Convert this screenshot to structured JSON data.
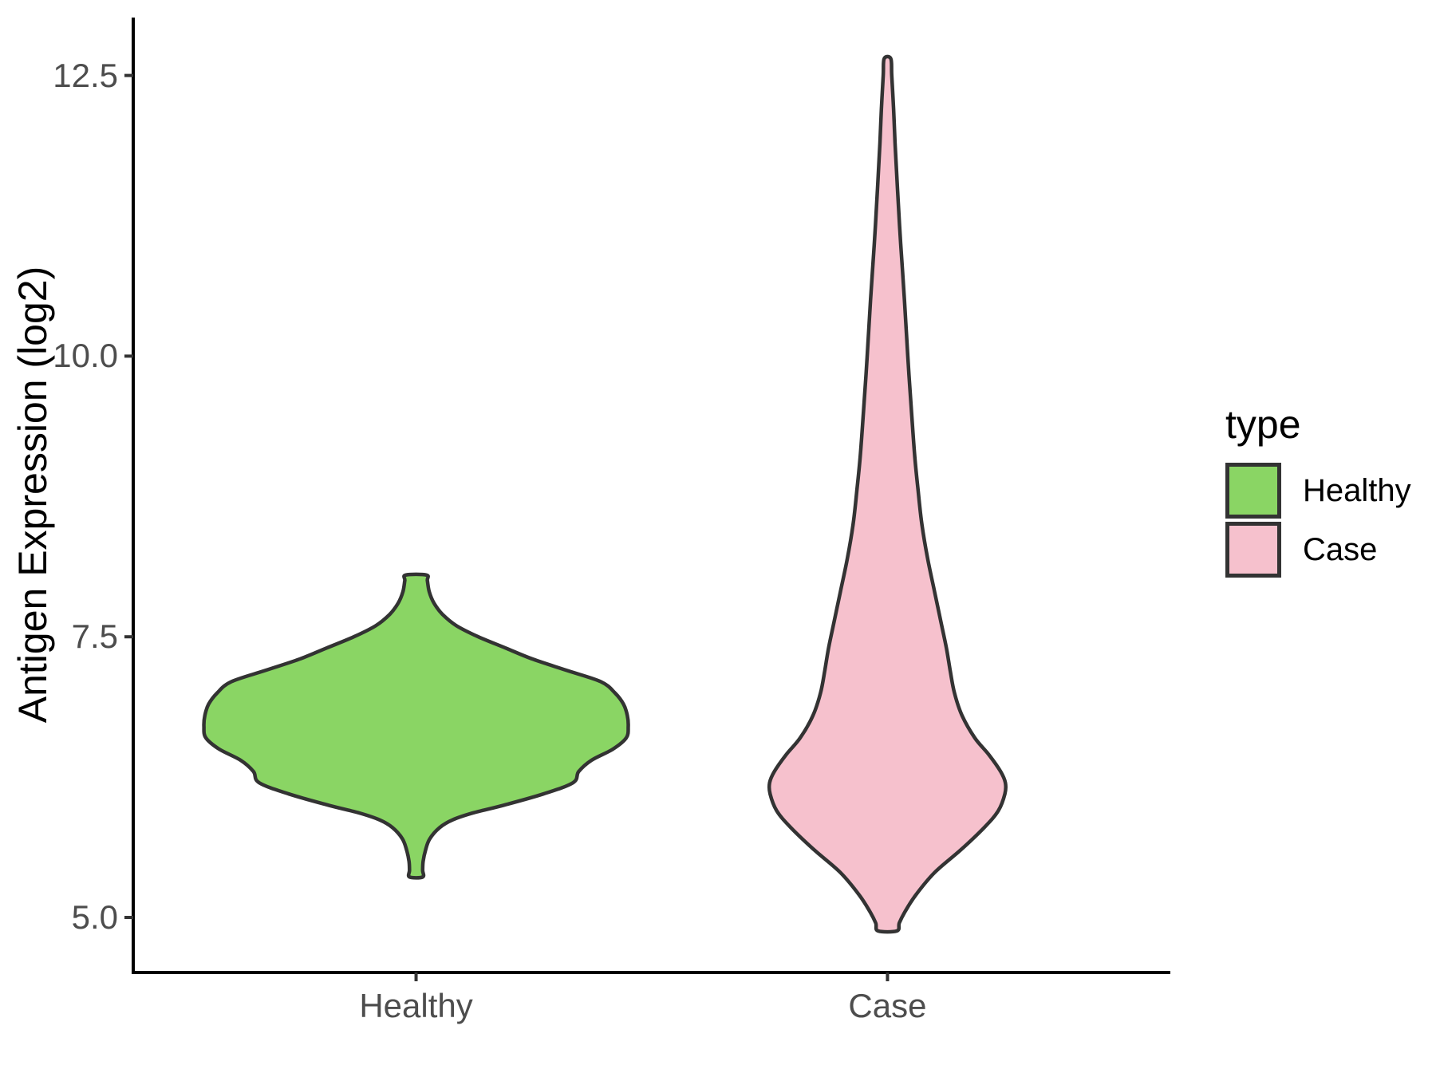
{
  "chart_data": {
    "type": "violin",
    "title": "",
    "xlabel": "",
    "ylabel": "Antigen Expression (log2)",
    "categories": [
      "Healthy",
      "Case"
    ],
    "x_tick_labels": [
      "Healthy",
      "Case"
    ],
    "y_ticks": [
      {
        "value": 5.0,
        "label": "5.0"
      },
      {
        "value": 7.5,
        "label": "7.5"
      },
      {
        "value": 10.0,
        "label": "10.0"
      },
      {
        "value": 12.5,
        "label": "12.5"
      }
    ],
    "ylim": [
      4.5,
      13.0
    ],
    "grid": "off",
    "axis_colors": {
      "line": "#000000",
      "tick": "#333333",
      "tick_text": "#4d4d4d",
      "title_text": "#000000"
    },
    "legend": {
      "title": "type",
      "position": "right",
      "swatch_border": "#333333",
      "entries": [
        {
          "label": "Healthy",
          "fill": "#8AD564"
        },
        {
          "label": "Case",
          "fill": "#F6C1CD"
        }
      ]
    },
    "series": [
      {
        "name": "Healthy",
        "fill": "#8AD564",
        "outline": "#333333",
        "y_min": 5.36,
        "y_max": 8.05,
        "peak_value": 6.7,
        "profile": [
          [
            8.05,
            0.022
          ],
          [
            8.0,
            0.024
          ],
          [
            7.9,
            0.028
          ],
          [
            7.8,
            0.038
          ],
          [
            7.7,
            0.056
          ],
          [
            7.6,
            0.085
          ],
          [
            7.5,
            0.132
          ],
          [
            7.4,
            0.19
          ],
          [
            7.3,
            0.248
          ],
          [
            7.2,
            0.32
          ],
          [
            7.1,
            0.392
          ],
          [
            7.0,
            0.422
          ],
          [
            6.9,
            0.44
          ],
          [
            6.8,
            0.448
          ],
          [
            6.7,
            0.45
          ],
          [
            6.6,
            0.446
          ],
          [
            6.5,
            0.418
          ],
          [
            6.4,
            0.372
          ],
          [
            6.3,
            0.345
          ],
          [
            6.2,
            0.333
          ],
          [
            6.1,
            0.27
          ],
          [
            6.0,
            0.186
          ],
          [
            5.93,
            0.12
          ],
          [
            5.87,
            0.078
          ],
          [
            5.8,
            0.05
          ],
          [
            5.7,
            0.029
          ],
          [
            5.6,
            0.02
          ],
          [
            5.5,
            0.015
          ],
          [
            5.42,
            0.014
          ],
          [
            5.36,
            0.014
          ]
        ]
      },
      {
        "name": "Case",
        "fill": "#F6C1CD",
        "outline": "#333333",
        "y_min": 4.88,
        "y_max": 12.65,
        "peak_value": 6.2,
        "profile": [
          [
            12.65,
            0.007
          ],
          [
            12.5,
            0.009
          ],
          [
            12.2,
            0.013
          ],
          [
            11.9,
            0.016
          ],
          [
            11.5,
            0.021
          ],
          [
            11.0,
            0.028
          ],
          [
            10.5,
            0.036
          ],
          [
            10.0,
            0.043
          ],
          [
            9.5,
            0.051
          ],
          [
            9.1,
            0.058
          ],
          [
            8.8,
            0.065
          ],
          [
            8.5,
            0.073
          ],
          [
            8.2,
            0.085
          ],
          [
            7.9,
            0.1
          ],
          [
            7.6,
            0.115
          ],
          [
            7.4,
            0.125
          ],
          [
            7.2,
            0.133
          ],
          [
            7.0,
            0.142
          ],
          [
            6.8,
            0.158
          ],
          [
            6.6,
            0.185
          ],
          [
            6.45,
            0.215
          ],
          [
            6.3,
            0.24
          ],
          [
            6.2,
            0.25
          ],
          [
            6.1,
            0.249
          ],
          [
            5.95,
            0.235
          ],
          [
            5.8,
            0.205
          ],
          [
            5.6,
            0.155
          ],
          [
            5.4,
            0.1
          ],
          [
            5.2,
            0.06
          ],
          [
            5.05,
            0.037
          ],
          [
            4.95,
            0.025
          ],
          [
            4.88,
            0.02
          ]
        ]
      }
    ]
  }
}
